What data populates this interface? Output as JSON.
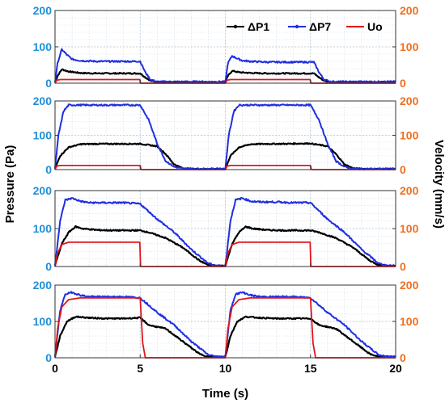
{
  "figure": {
    "ylabel_left": "Pressure (Pa)",
    "ylabel_right": "Velocity (mm/s)",
    "xlabel": "Time (s)",
    "legend": [
      "ΔP1",
      "ΔP7",
      "Uo"
    ]
  },
  "chart_data": {
    "type": "line",
    "xlabel": "Time (s)",
    "ylabel": "Pressure (Pa)",
    "ylabel_right": "Velocity (mm/s)",
    "xlim": [
      0,
      20
    ],
    "ylim": [
      0,
      200
    ],
    "ylim_right": [
      0,
      200
    ],
    "x_ticks": [
      "0",
      "5",
      "10",
      "15",
      "20"
    ],
    "y_ticks": [
      "0",
      "100",
      "200"
    ],
    "grid": true,
    "legend_position": "top-right",
    "colors": {
      "dp1": "#000000",
      "dp7": "#1f2fe0",
      "uo": "#e0161b",
      "left_axis": "#1f8fd6",
      "right_axis": "#ee6f22"
    },
    "panels": [
      {
        "series": [
          {
            "name": "ΔP1",
            "x": [
              0,
              0.15,
              0.4,
              0.8,
              1.5,
              2.5,
              3.5,
              4.5,
              5.0,
              5.3,
              5.6,
              6.0,
              10.0,
              10.15,
              10.4,
              10.8,
              11.5,
              12.5,
              13.5,
              14.5,
              15.2,
              15.5,
              15.8,
              16.2,
              20.0
            ],
            "y": [
              3,
              20,
              38,
              32,
              28,
              27,
              27,
              27,
              27,
              16,
              7,
              3,
              3,
              20,
              34,
              30,
              28,
              27,
              27,
              27,
              27,
              16,
              7,
              3,
              3
            ]
          },
          {
            "name": "ΔP7",
            "x": [
              0,
              0.15,
              0.4,
              0.7,
              1.0,
              1.5,
              2.5,
              3.5,
              4.5,
              5.0,
              5.3,
              5.6,
              6.0,
              10.0,
              10.15,
              10.4,
              10.7,
              11.0,
              11.5,
              12.5,
              13.5,
              14.5,
              15.2,
              15.5,
              15.8,
              16.2,
              20.0
            ],
            "y": [
              3,
              55,
              93,
              78,
              66,
              62,
              60,
              60,
              60,
              60,
              30,
              10,
              4,
              4,
              55,
              75,
              68,
              62,
              60,
              58,
              58,
              58,
              58,
              30,
              10,
              4,
              4
            ]
          },
          {
            "name": "Uo",
            "x": [
              0,
              0.1,
              0.3,
              4.98,
              5.02,
              10.0,
              10.1,
              10.3,
              14.98,
              15.02,
              20.0
            ],
            "y": [
              0,
              8,
              10,
              10,
              0,
              0,
              8,
              10,
              10,
              0,
              0
            ]
          }
        ]
      },
      {
        "series": [
          {
            "name": "ΔP1",
            "x": [
              0,
              0.3,
              0.8,
              1.5,
              2.5,
              3.5,
              4.5,
              5.0,
              6.0,
              6.5,
              7.0,
              7.5,
              8.0,
              9.0,
              10.0,
              10.3,
              10.8,
              11.5,
              12.5,
              13.5,
              14.5,
              15.0,
              16.0,
              16.5,
              17.0,
              17.5,
              18.0,
              19.0,
              20.0
            ],
            "y": [
              3,
              40,
              65,
              74,
              75,
              75,
              75,
              75,
              68,
              45,
              15,
              4,
              2,
              2,
              2,
              40,
              65,
              74,
              75,
              75,
              76,
              76,
              68,
              45,
              15,
              4,
              2,
              2,
              2
            ]
          },
          {
            "name": "ΔP7",
            "x": [
              0,
              0.2,
              0.5,
              0.8,
              1.0,
              2.0,
              3.0,
              4.0,
              5.0,
              5.5,
              6.0,
              6.5,
              7.0,
              7.5,
              8.0,
              9.0,
              10.0,
              10.2,
              10.5,
              10.8,
              11.0,
              12.0,
              13.0,
              14.0,
              15.0,
              15.5,
              16.0,
              16.5,
              17.0,
              17.5,
              18.0,
              19.0,
              20.0
            ],
            "y": [
              3,
              100,
              170,
              188,
              188,
              188,
              188,
              188,
              188,
              145,
              75,
              25,
              8,
              3,
              2,
              2,
              2,
              100,
              170,
              188,
              188,
              188,
              188,
              188,
              188,
              145,
              75,
              25,
              8,
              3,
              2,
              2,
              2
            ]
          },
          {
            "name": "Uo",
            "x": [
              0,
              0.1,
              0.3,
              5.0,
              5.05,
              10.0,
              10.1,
              10.3,
              15.0,
              15.05,
              20.0
            ],
            "y": [
              0,
              10,
              12,
              12,
              0,
              0,
              10,
              12,
              12,
              0,
              0
            ]
          }
        ]
      },
      {
        "series": [
          {
            "name": "ΔP1",
            "x": [
              0,
              0.4,
              0.8,
              1.2,
              1.6,
              2.5,
              3.5,
              4.5,
              5.0,
              5.5,
              6.5,
              7.5,
              8.5,
              9.0,
              9.5,
              10.0,
              10.4,
              10.8,
              11.2,
              11.6,
              12.5,
              13.5,
              14.5,
              15.0,
              15.5,
              16.5,
              17.5,
              18.5,
              19.0,
              19.5,
              20.0
            ],
            "y": [
              3,
              60,
              90,
              105,
              100,
              96,
              95,
              95,
              95,
              90,
              75,
              50,
              15,
              4,
              2,
              2,
              60,
              90,
              105,
              100,
              96,
              95,
              95,
              95,
              90,
              75,
              50,
              15,
              4,
              2,
              2
            ]
          },
          {
            "name": "ΔP7",
            "x": [
              0,
              0.3,
              0.6,
              1.0,
              1.5,
              2.0,
              3.0,
              4.0,
              5.0,
              6.0,
              7.0,
              8.0,
              9.0,
              9.5,
              10.0,
              10.3,
              10.6,
              11.0,
              11.5,
              12.0,
              13.0,
              14.0,
              15.0,
              16.0,
              17.0,
              18.0,
              19.0,
              19.5,
              20.0
            ],
            "y": [
              3,
              120,
              175,
              180,
              172,
              168,
              168,
              168,
              165,
              125,
              90,
              45,
              8,
              2,
              2,
              120,
              175,
              180,
              172,
              170,
              170,
              168,
              168,
              125,
              90,
              45,
              8,
              2,
              2
            ]
          },
          {
            "name": "Uo",
            "x": [
              0,
              0.15,
              0.4,
              0.8,
              4.98,
              5.02,
              10.0,
              10.15,
              10.4,
              10.8,
              14.98,
              15.02,
              20.0
            ],
            "y": [
              0,
              35,
              58,
              64,
              64,
              0,
              0,
              35,
              58,
              64,
              64,
              0,
              0
            ]
          }
        ]
      },
      {
        "series": [
          {
            "name": "ΔP1",
            "x": [
              0,
              0.3,
              0.7,
              1.2,
              2.0,
              3.0,
              4.0,
              5.0,
              5.5,
              6.5,
              7.5,
              8.5,
              9.0,
              10.0,
              10.3,
              10.7,
              11.2,
              12.0,
              13.0,
              14.0,
              15.0,
              15.5,
              16.5,
              17.5,
              18.5,
              19.0,
              20.0
            ],
            "y": [
              3,
              60,
              100,
              113,
              110,
              108,
              108,
              110,
              90,
              80,
              45,
              10,
              3,
              3,
              60,
              100,
              113,
              110,
              108,
              108,
              108,
              90,
              80,
              45,
              10,
              3,
              3
            ]
          },
          {
            "name": "ΔP7",
            "x": [
              0,
              0.3,
              0.6,
              1.0,
              1.5,
              2.0,
              3.0,
              4.0,
              5.0,
              6.0,
              7.0,
              8.0,
              9.0,
              9.5,
              10.0,
              10.3,
              10.6,
              11.0,
              11.5,
              12.0,
              13.0,
              14.0,
              15.0,
              16.0,
              17.0,
              18.0,
              19.0,
              19.5,
              20.0
            ],
            "y": [
              3,
              130,
              175,
              180,
              172,
              168,
              168,
              168,
              165,
              125,
              90,
              45,
              8,
              3,
              3,
              130,
              175,
              180,
              172,
              168,
              168,
              168,
              165,
              125,
              90,
              45,
              8,
              3,
              3
            ]
          },
          {
            "name": "Uo",
            "x": [
              0,
              0.15,
              0.4,
              0.8,
              1.5,
              5.0,
              5.15,
              5.3,
              10.0,
              10.15,
              10.4,
              10.8,
              11.5,
              15.0,
              15.15,
              15.3,
              20.0
            ],
            "y": [
              0,
              80,
              140,
              160,
              165,
              165,
              40,
              0,
              0,
              80,
              140,
              160,
              165,
              165,
              40,
              0,
              0
            ]
          }
        ]
      }
    ]
  }
}
